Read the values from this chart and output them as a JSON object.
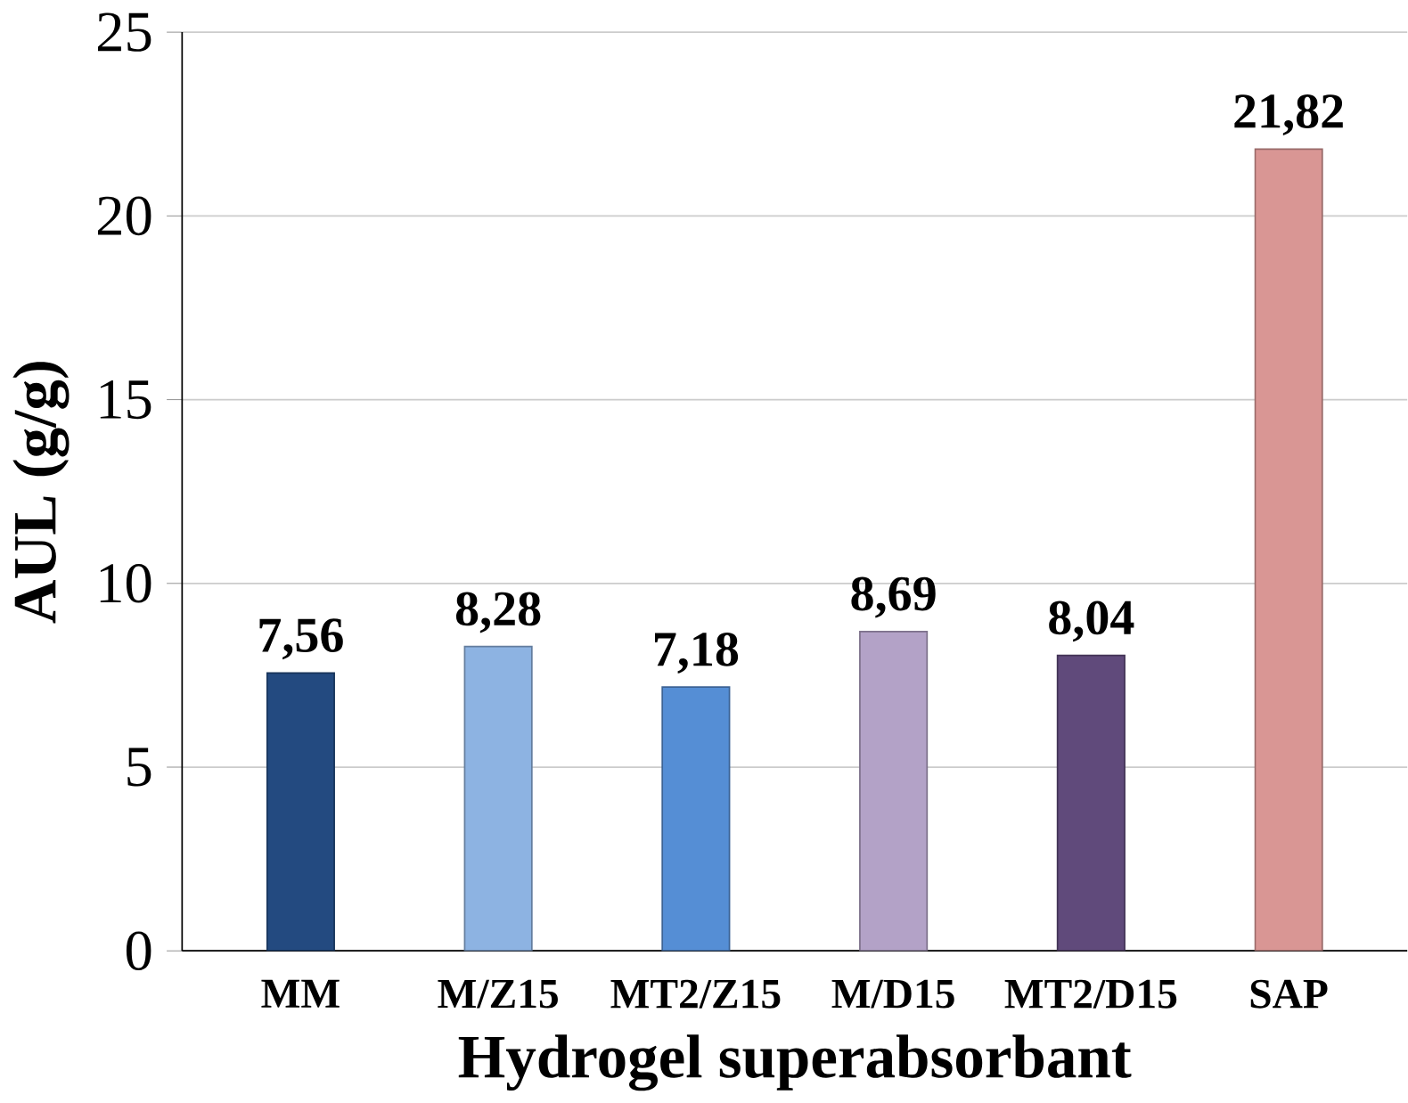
{
  "chart_data": {
    "type": "bar",
    "xlabel": "Hydrogel superabsorbant",
    "ylabel": "AUL (g/g)",
    "categories": [
      "MM",
      "M/Z15",
      "MT2/Z15",
      "M/D15",
      "MT2/D15",
      "SAP"
    ],
    "values": [
      7.56,
      8.28,
      7.18,
      8.69,
      8.04,
      21.82
    ],
    "colors": [
      "#234a80",
      "#8db3e2",
      "#558ed5",
      "#b3a2c7",
      "#604a7b",
      "#d99694"
    ],
    "value_labels": [
      "7,56",
      "8,28",
      "7,18",
      "8,69",
      "8,04",
      "21,82"
    ],
    "ylim": [
      0,
      25
    ],
    "yticks": [
      0,
      5,
      10,
      15,
      20,
      25
    ],
    "grid": "y"
  }
}
